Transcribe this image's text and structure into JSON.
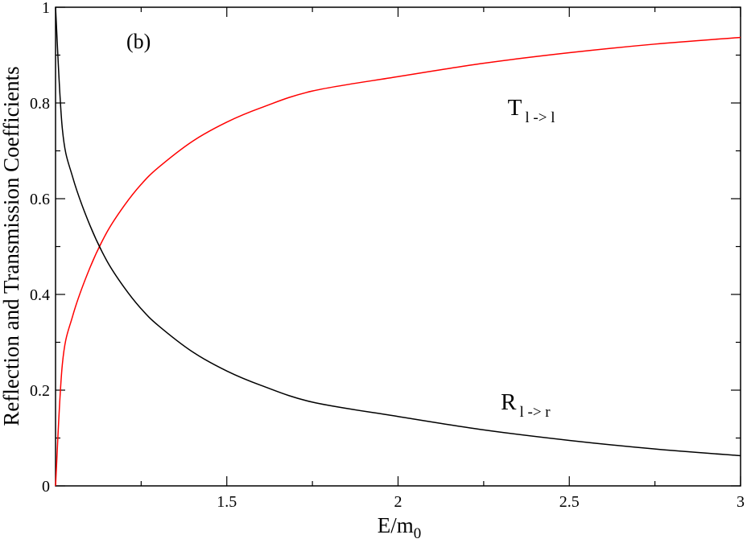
{
  "chart_data": {
    "type": "line",
    "panel_label": "(b)",
    "xlabel": {
      "main": "E/m",
      "sub": "0"
    },
    "ylabel": "Reflection and Transmission Coefficients",
    "xlim": [
      1.0,
      3.0
    ],
    "ylim": [
      0,
      1
    ],
    "x_ticks": [
      1.5,
      2.0,
      2.5,
      3.0
    ],
    "x_tick_labels": [
      "1.5",
      "2",
      "2.5",
      "3"
    ],
    "y_ticks": [
      0,
      0.2,
      0.4,
      0.6,
      0.8,
      1.0
    ],
    "y_tick_labels": [
      "0",
      "0.2",
      "0.4",
      "0.6",
      "0.8",
      "1"
    ],
    "grid": false,
    "series": [
      {
        "color": "#ff0000",
        "x": [
          1.0,
          1.02,
          1.05,
          1.1,
          1.15,
          1.2,
          1.25,
          1.3,
          1.4,
          1.5,
          1.6,
          1.75,
          2.0,
          2.25,
          2.5,
          2.75,
          3.0
        ],
        "y": [
          0.0,
          0.255,
          0.355,
          0.455,
          0.53,
          0.585,
          0.63,
          0.665,
          0.72,
          0.76,
          0.79,
          0.825,
          0.855,
          0.883,
          0.905,
          0.923,
          0.937
        ]
      },
      {
        "color": "#000000",
        "x": [
          1.0,
          1.02,
          1.05,
          1.1,
          1.15,
          1.2,
          1.25,
          1.3,
          1.4,
          1.5,
          1.6,
          1.75,
          2.0,
          2.25,
          2.5,
          2.75,
          3.0
        ],
        "y": [
          1.0,
          0.745,
          0.645,
          0.545,
          0.47,
          0.415,
          0.37,
          0.335,
          0.28,
          0.24,
          0.21,
          0.175,
          0.145,
          0.117,
          0.095,
          0.077,
          0.063
        ]
      }
    ],
    "annotations": [
      {
        "main": "T",
        "sub": "l -> l",
        "x": 2.32,
        "y": 0.775
      },
      {
        "main": "R",
        "sub": "l -> r",
        "x": 2.3,
        "y": 0.16
      }
    ]
  }
}
